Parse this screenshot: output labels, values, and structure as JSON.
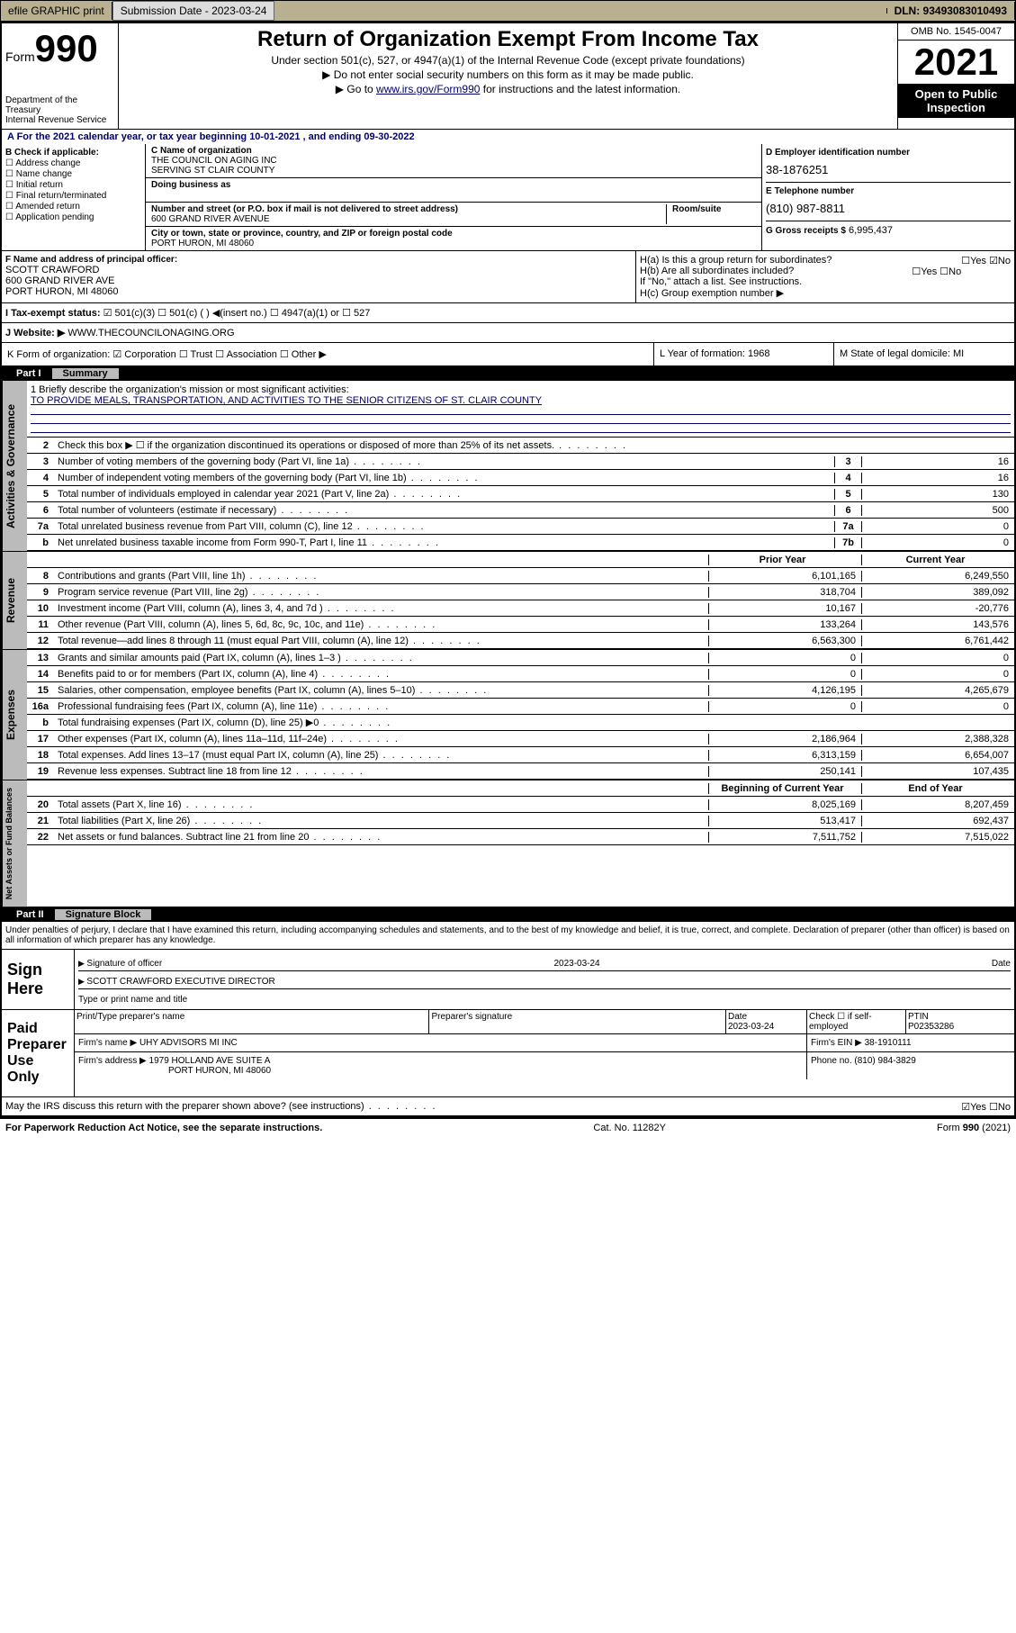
{
  "topbar": {
    "efile": "efile GRAPHIC print",
    "subdate_label": "Submission Date - 2023-03-24",
    "dln": "DLN: 93493083010493"
  },
  "header": {
    "form_prefix": "Form",
    "form_number": "990",
    "title": "Return of Organization Exempt From Income Tax",
    "sub1": "Under section 501(c), 527, or 4947(a)(1) of the Internal Revenue Code (except private foundations)",
    "sub2": "▶ Do not enter social security numbers on this form as it may be made public.",
    "sub3_pre": "▶ Go to ",
    "sub3_link": "www.irs.gov/Form990",
    "sub3_post": " for instructions and the latest information.",
    "dept": "Department of the Treasury",
    "irs": "Internal Revenue Service",
    "omb": "OMB No. 1545-0047",
    "year": "2021",
    "open": "Open to Public Inspection"
  },
  "sectA": {
    "line": "A For the 2021 calendar year, or tax year beginning 10-01-2021 , and ending 09-30-2022"
  },
  "colB": {
    "label": "B Check if applicable:",
    "items": [
      "Address change",
      "Name change",
      "Initial return",
      "Final return/terminated",
      "Amended return",
      "Application pending"
    ]
  },
  "colC": {
    "c_label": "C Name of organization",
    "c_val1": "THE COUNCIL ON AGING INC",
    "c_val2": "SERVING ST CLAIR COUNTY",
    "dba_label": "Doing business as",
    "addr_label": "Number and street (or P.O. box if mail is not delivered to street address)",
    "room_label": "Room/suite",
    "addr": "600 GRAND RIVER AVENUE",
    "city_label": "City or town, state or province, country, and ZIP or foreign postal code",
    "city": "PORT HURON, MI  48060"
  },
  "colD": {
    "d_label": "D Employer identification number",
    "d_val": "38-1876251",
    "e_label": "E Telephone number",
    "e_val": "(810) 987-8811",
    "g_label": "G Gross receipts $",
    "g_val": "6,995,437"
  },
  "fh": {
    "f_label": "F Name and address of principal officer:",
    "f_name": "SCOTT CRAWFORD",
    "f_addr1": "600 GRAND RIVER AVE",
    "f_addr2": "PORT HURON, MI  48060",
    "ha": "H(a) Is this a group return for subordinates?",
    "ha_ans": "☐Yes ☑No",
    "hb": "H(b) Are all subordinates included?",
    "hb_ans": "☐Yes ☐No",
    "hb_note": "If \"No,\" attach a list. See instructions.",
    "hc": "H(c) Group exemption number ▶"
  },
  "ij": {
    "i_label": "I   Tax-exempt status:",
    "i_opts": "☑ 501(c)(3)   ☐ 501(c) (  ) ◀(insert no.)   ☐ 4947(a)(1) or   ☐ 527",
    "j_label": "J   Website: ▶",
    "j_val": "WWW.THECOUNCILONAGING.ORG"
  },
  "klm": {
    "k": "K Form of organization:  ☑ Corporation  ☐ Trust  ☐ Association  ☐ Other ▶",
    "l": "L Year of formation: 1968",
    "m": "M State of legal domicile: MI"
  },
  "parts": {
    "p1": "Part I",
    "p1t": "Summary",
    "p2": "Part II",
    "p2t": "Signature Block"
  },
  "mission": {
    "q": "1  Briefly describe the organization's mission or most significant activities:",
    "a": "TO PROVIDE MEALS, TRANSPORTATION, AND ACTIVITIES TO THE SENIOR CITIZENS OF ST. CLAIR COUNTY"
  },
  "gov_rows": [
    {
      "n": "2",
      "d": "Check this box ▶ ☐  if the organization discontinued its operations or disposed of more than 25% of its net assets."
    },
    {
      "n": "3",
      "d": "Number of voting members of the governing body (Part VI, line 1a)",
      "c1": "3",
      "c2": "16"
    },
    {
      "n": "4",
      "d": "Number of independent voting members of the governing body (Part VI, line 1b)",
      "c1": "4",
      "c2": "16"
    },
    {
      "n": "5",
      "d": "Total number of individuals employed in calendar year 2021 (Part V, line 2a)",
      "c1": "5",
      "c2": "130"
    },
    {
      "n": "6",
      "d": "Total number of volunteers (estimate if necessary)",
      "c1": "6",
      "c2": "500"
    },
    {
      "n": "7a",
      "d": "Total unrelated business revenue from Part VIII, column (C), line 12",
      "c1": "7a",
      "c2": "0"
    },
    {
      "n": "b",
      "d": "Net unrelated business taxable income from Form 990-T, Part I, line 11",
      "c1": "7b",
      "c2": "0"
    }
  ],
  "rev_hdr": {
    "py": "Prior Year",
    "cy": "Current Year"
  },
  "rev_rows": [
    {
      "n": "8",
      "d": "Contributions and grants (Part VIII, line 1h)",
      "py": "6,101,165",
      "cy": "6,249,550"
    },
    {
      "n": "9",
      "d": "Program service revenue (Part VIII, line 2g)",
      "py": "318,704",
      "cy": "389,092"
    },
    {
      "n": "10",
      "d": "Investment income (Part VIII, column (A), lines 3, 4, and 7d )",
      "py": "10,167",
      "cy": "-20,776"
    },
    {
      "n": "11",
      "d": "Other revenue (Part VIII, column (A), lines 5, 6d, 8c, 9c, 10c, and 11e)",
      "py": "133,264",
      "cy": "143,576"
    },
    {
      "n": "12",
      "d": "Total revenue—add lines 8 through 11 (must equal Part VIII, column (A), line 12)",
      "py": "6,563,300",
      "cy": "6,761,442"
    }
  ],
  "exp_rows": [
    {
      "n": "13",
      "d": "Grants and similar amounts paid (Part IX, column (A), lines 1–3 )",
      "py": "0",
      "cy": "0"
    },
    {
      "n": "14",
      "d": "Benefits paid to or for members (Part IX, column (A), line 4)",
      "py": "0",
      "cy": "0"
    },
    {
      "n": "15",
      "d": "Salaries, other compensation, employee benefits (Part IX, column (A), lines 5–10)",
      "py": "4,126,195",
      "cy": "4,265,679"
    },
    {
      "n": "16a",
      "d": "Professional fundraising fees (Part IX, column (A), line 11e)",
      "py": "0",
      "cy": "0"
    },
    {
      "n": "b",
      "d": "Total fundraising expenses (Part IX, column (D), line 25) ▶0",
      "py": "",
      "cy": "",
      "shade": true
    },
    {
      "n": "17",
      "d": "Other expenses (Part IX, column (A), lines 11a–11d, 11f–24e)",
      "py": "2,186,964",
      "cy": "2,388,328"
    },
    {
      "n": "18",
      "d": "Total expenses. Add lines 13–17 (must equal Part IX, column (A), line 25)",
      "py": "6,313,159",
      "cy": "6,654,007"
    },
    {
      "n": "19",
      "d": "Revenue less expenses. Subtract line 18 from line 12",
      "py": "250,141",
      "cy": "107,435"
    }
  ],
  "na_hdr": {
    "py": "Beginning of Current Year",
    "cy": "End of Year"
  },
  "na_rows": [
    {
      "n": "20",
      "d": "Total assets (Part X, line 16)",
      "py": "8,025,169",
      "cy": "8,207,459"
    },
    {
      "n": "21",
      "d": "Total liabilities (Part X, line 26)",
      "py": "513,417",
      "cy": "692,437"
    },
    {
      "n": "22",
      "d": "Net assets or fund balances. Subtract line 21 from line 20",
      "py": "7,511,752",
      "cy": "7,515,022"
    }
  ],
  "sig": {
    "decl": "Under penalties of perjury, I declare that I have examined this return, including accompanying schedules and statements, and to the best of my knowledge and belief, it is true, correct, and complete. Declaration of preparer (other than officer) is based on all information of which preparer has any knowledge.",
    "sign_here": "Sign Here",
    "sig_officer": "Signature of officer",
    "date": "Date",
    "sig_date": "2023-03-24",
    "name_title": "SCOTT CRAWFORD  EXECUTIVE DIRECTOR",
    "name_lbl": "Type or print name and title",
    "paid": "Paid Preparer Use Only",
    "prep_name_lbl": "Print/Type preparer's name",
    "prep_sig_lbl": "Preparer's signature",
    "prep_date_lbl": "Date",
    "prep_date": "2023-03-24",
    "self_emp": "Check ☐ if self-employed",
    "ptin_lbl": "PTIN",
    "ptin": "P02353286",
    "firm_lbl": "Firm's name   ▶",
    "firm": "UHY ADVISORS MI INC",
    "ein_lbl": "Firm's EIN ▶",
    "ein": "38-1910111",
    "faddr_lbl": "Firm's address ▶",
    "faddr1": "1979 HOLLAND AVE SUITE A",
    "faddr2": "PORT HURON, MI  48060",
    "phone_lbl": "Phone no.",
    "phone": "(810) 984-3829",
    "discuss": "May the IRS discuss this return with the preparer shown above? (see instructions)",
    "discuss_ans": "☑Yes  ☐No"
  },
  "footer": {
    "left": "For Paperwork Reduction Act Notice, see the separate instructions.",
    "mid": "Cat. No. 11282Y",
    "right": "Form 990 (2021)"
  },
  "colors": {
    "topbar_bg": "#b8b090",
    "shade": "#cccccc",
    "link": "#000066"
  }
}
